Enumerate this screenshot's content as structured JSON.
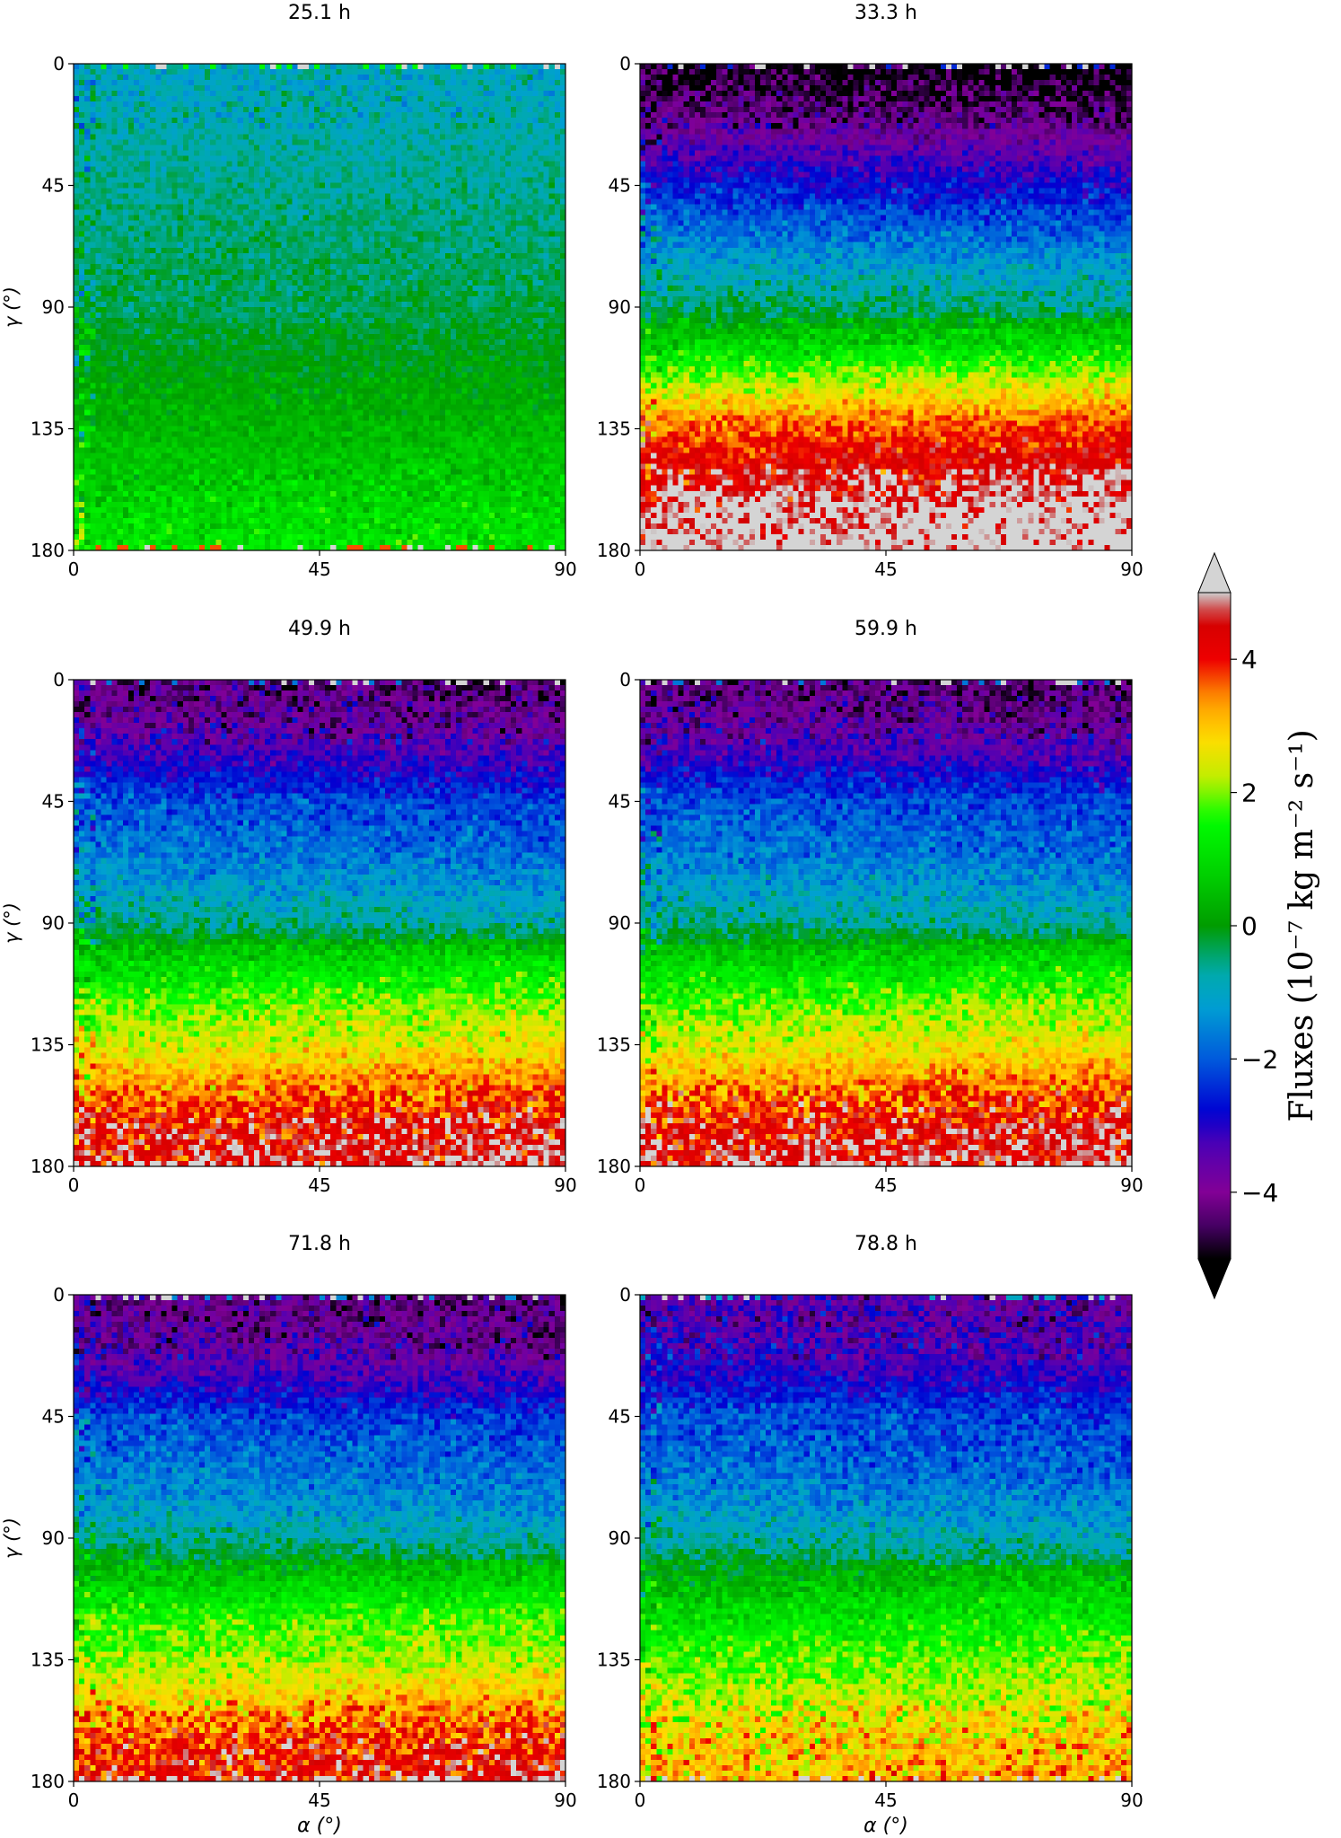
{
  "figure": {
    "colorbar_label": "Fluxes (10⁻⁷ kg m⁻² s⁻¹)",
    "colorbar_ticks": [
      "4",
      "2",
      "0",
      "−2",
      "−4"
    ],
    "colorbar_tick_values": [
      4,
      2,
      0,
      -2,
      -4
    ],
    "colorbar_range": [
      -5,
      5
    ],
    "colormap": "nipy_spectral",
    "over_color": "#d4d4d4",
    "under_color": "#000000"
  },
  "chart_data": [
    {
      "type": "heatmap",
      "title": "25.1 h",
      "xlabel": "",
      "ylabel": "γ (°)",
      "xlim": [
        0,
        90
      ],
      "ylim": [
        180,
        0
      ],
      "xticks": [
        "0",
        "45",
        "90"
      ],
      "yticks": [
        "0",
        "45",
        "90",
        "135",
        "180"
      ],
      "profile_gamma": [
        0,
        45,
        90,
        135,
        180
      ],
      "profile_flux": [
        -1.0,
        -0.6,
        -0.3,
        0.4,
        1.2
      ]
    },
    {
      "type": "heatmap",
      "title": "33.3 h",
      "xlabel": "",
      "ylabel": "",
      "xlim": [
        0,
        90
      ],
      "ylim": [
        180,
        0
      ],
      "xticks": [
        "0",
        "45",
        "90"
      ],
      "yticks": [
        "0",
        "45",
        "90",
        "135",
        "180"
      ],
      "profile_gamma": [
        0,
        15,
        30,
        45,
        60,
        75,
        90,
        105,
        120,
        135,
        150,
        165,
        180
      ],
      "profile_flux": [
        -5.0,
        -4.3,
        -3.5,
        -2.6,
        -1.8,
        -1.0,
        -0.3,
        0.9,
        2.4,
        3.6,
        4.3,
        5.0,
        5.2
      ]
    },
    {
      "type": "heatmap",
      "title": "49.9 h",
      "xlabel": "",
      "ylabel": "γ (°)",
      "xlim": [
        0,
        90
      ],
      "ylim": [
        180,
        0
      ],
      "xticks": [
        "0",
        "45",
        "90"
      ],
      "yticks": [
        "0",
        "45",
        "90",
        "135",
        "180"
      ],
      "profile_gamma": [
        0,
        15,
        30,
        45,
        60,
        75,
        90,
        105,
        120,
        135,
        150,
        165,
        180
      ],
      "profile_flux": [
        -4.2,
        -3.8,
        -3.0,
        -2.0,
        -1.7,
        -1.2,
        -0.5,
        0.9,
        1.8,
        2.4,
        3.3,
        4.2,
        4.5
      ]
    },
    {
      "type": "heatmap",
      "title": "59.9 h",
      "xlabel": "",
      "ylabel": "",
      "xlim": [
        0,
        90
      ],
      "ylim": [
        180,
        0
      ],
      "xticks": [
        "0",
        "45",
        "90"
      ],
      "yticks": [
        "0",
        "45",
        "90",
        "135",
        "180"
      ],
      "profile_gamma": [
        0,
        15,
        30,
        45,
        60,
        75,
        90,
        105,
        120,
        135,
        150,
        165,
        180
      ],
      "profile_flux": [
        -4.2,
        -3.8,
        -3.0,
        -2.0,
        -1.7,
        -1.2,
        -0.5,
        0.9,
        1.8,
        2.4,
        3.3,
        4.2,
        4.5
      ]
    },
    {
      "type": "heatmap",
      "title": "71.8 h",
      "xlabel": "α (°)",
      "ylabel": "γ (°)",
      "xlim": [
        0,
        90
      ],
      "ylim": [
        180,
        0
      ],
      "xticks": [
        "0",
        "45",
        "90"
      ],
      "yticks": [
        "0",
        "45",
        "90",
        "135",
        "180"
      ],
      "profile_gamma": [
        0,
        15,
        30,
        45,
        60,
        75,
        90,
        105,
        120,
        135,
        150,
        165,
        180
      ],
      "profile_flux": [
        -4.0,
        -3.8,
        -3.2,
        -2.1,
        -1.7,
        -1.3,
        -0.6,
        0.6,
        1.6,
        2.0,
        2.9,
        3.8,
        4.2
      ]
    },
    {
      "type": "heatmap",
      "title": "78.8 h",
      "xlabel": "α (°)",
      "ylabel": "",
      "xlim": [
        0,
        90
      ],
      "ylim": [
        180,
        0
      ],
      "xticks": [
        "0",
        "45",
        "90"
      ],
      "yticks": [
        "0",
        "45",
        "90",
        "135",
        "180"
      ],
      "profile_gamma": [
        0,
        15,
        30,
        45,
        60,
        75,
        90,
        105,
        120,
        135,
        150,
        165,
        180
      ],
      "profile_flux": [
        -3.5,
        -3.3,
        -2.9,
        -2.0,
        -1.8,
        -1.4,
        -0.7,
        0.3,
        1.1,
        1.7,
        2.2,
        2.8,
        3.1
      ]
    }
  ]
}
